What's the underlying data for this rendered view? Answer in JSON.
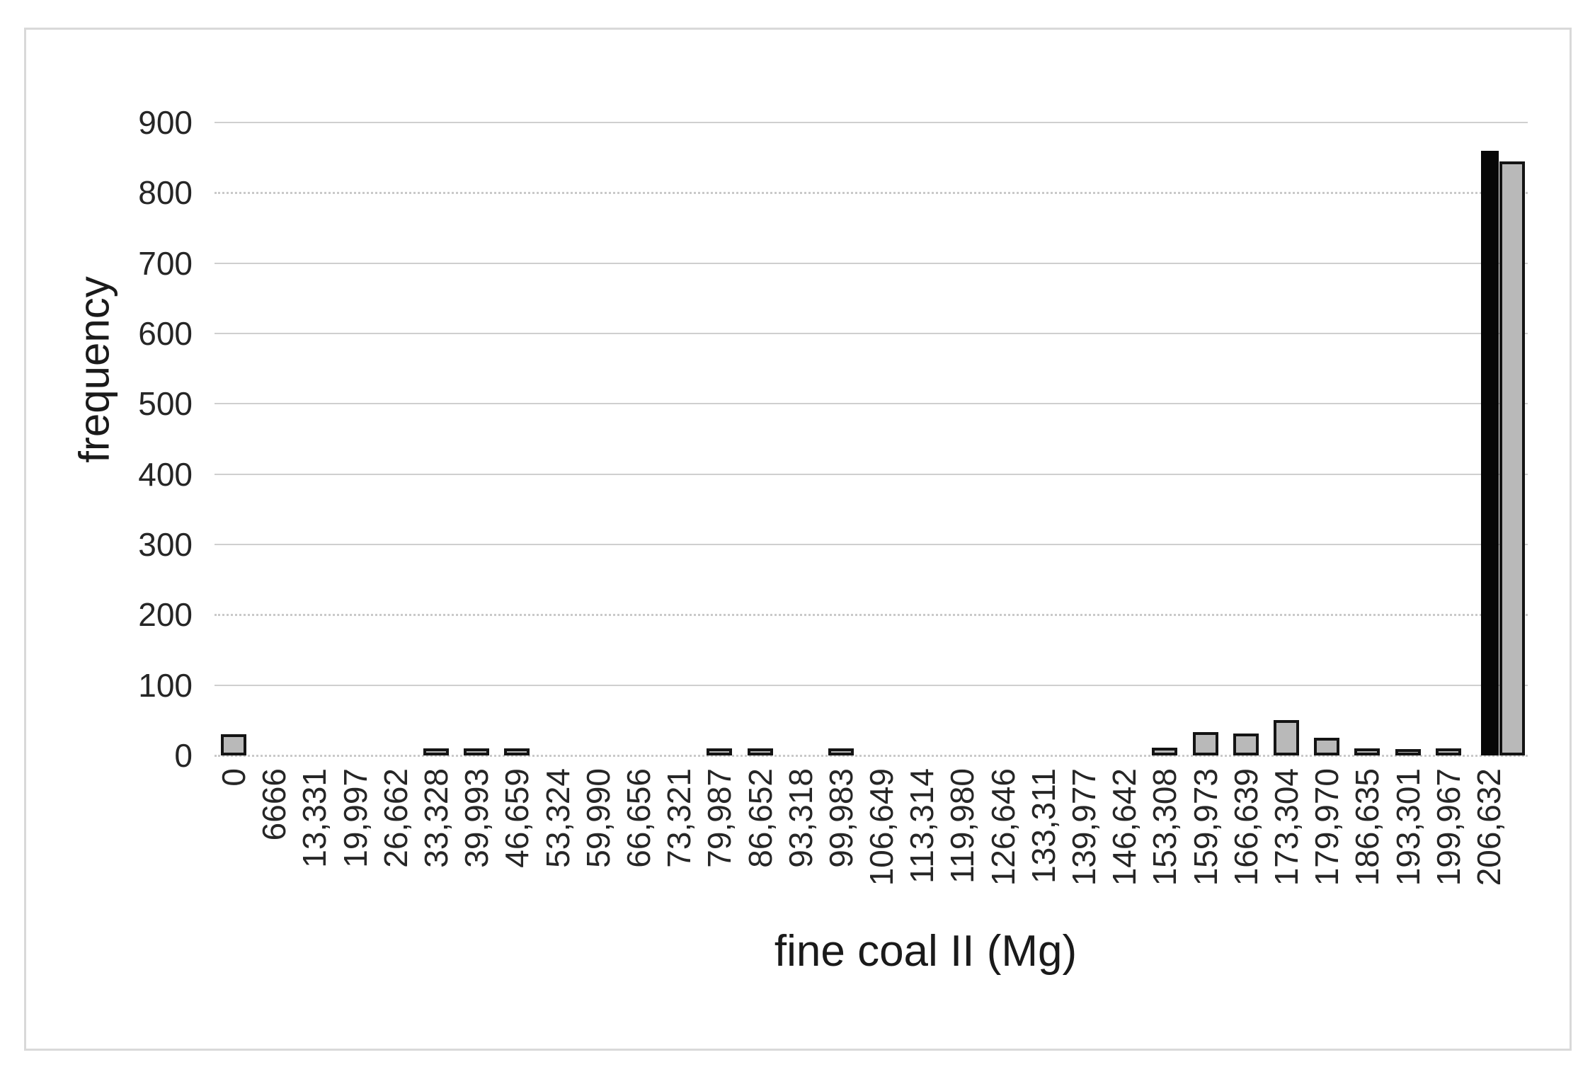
{
  "frame": {
    "border_color": "#d9d9d9",
    "background": "#ffffff"
  },
  "chart_data": {
    "type": "bar",
    "title": "",
    "xlabel": "fine coal II (Mg)",
    "ylabel": "frequency",
    "ylim": [
      0,
      900
    ],
    "ytick_step": 100,
    "ytick_labels": [
      "0",
      "100",
      "200",
      "300",
      "400",
      "500",
      "600",
      "700",
      "800",
      "900"
    ],
    "grid": true,
    "legend": false,
    "categories": [
      "0",
      "6666",
      "13,331",
      "19,997",
      "26,662",
      "33,328",
      "39,993",
      "46,659",
      "53,324",
      "59,990",
      "66,656",
      "73,321",
      "79,987",
      "86,652",
      "93,318",
      "99,983",
      "106,649",
      "113,314",
      "119,980",
      "126,646",
      "133,311",
      "139,977",
      "146,642",
      "153,308",
      "159,973",
      "166,639",
      "173,304",
      "179,970",
      "186,635",
      "193,301",
      "199,967",
      "206,632"
    ],
    "values": [
      25,
      0,
      0,
      0,
      0,
      5,
      5,
      5,
      0,
      0,
      0,
      0,
      5,
      5,
      0,
      5,
      0,
      0,
      0,
      0,
      0,
      0,
      0,
      6,
      28,
      26,
      45,
      20,
      5,
      4,
      5,
      860
    ],
    "bar_fill": "#b9b9b9",
    "bar_border": "#141414",
    "highlight_index": 31,
    "highlight_color": "#070707",
    "overflow_bar": {
      "label": "",
      "value": 840,
      "fill": "#b9b9b9"
    }
  }
}
